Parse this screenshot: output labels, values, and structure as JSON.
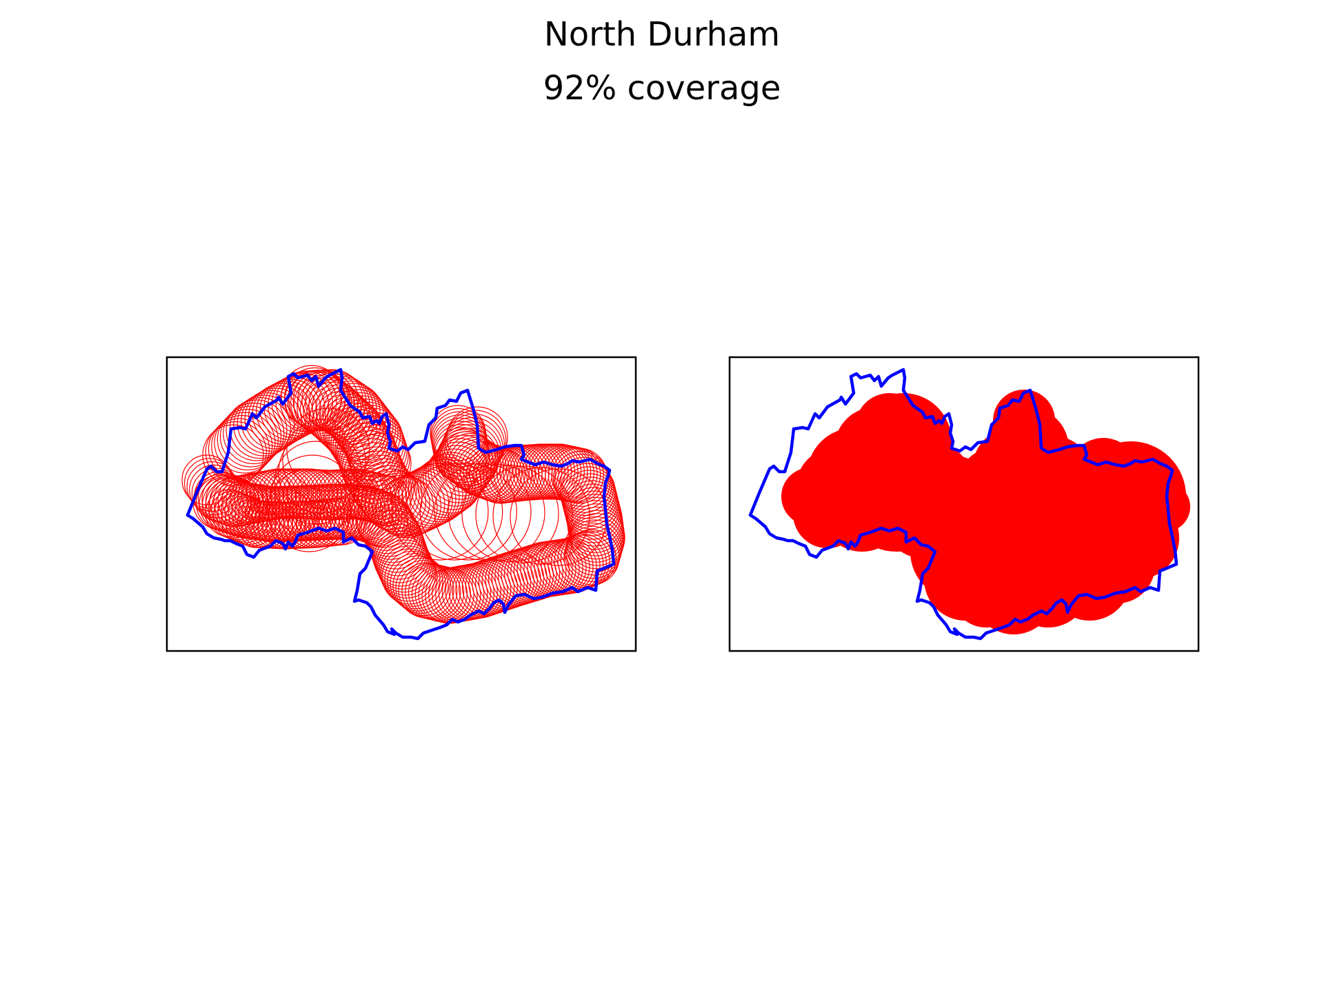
{
  "figure": {
    "title": "North Durham",
    "subtitle": "92% coverage"
  },
  "colors": {
    "boundary": "#0000ff",
    "coverage": "#ff0000",
    "frame": "#000000",
    "background": "#ffffff"
  },
  "panels": [
    {
      "name": "circle-outlines",
      "circle_style": "outline"
    },
    {
      "name": "circle-fill",
      "circle_style": "filled"
    }
  ]
}
